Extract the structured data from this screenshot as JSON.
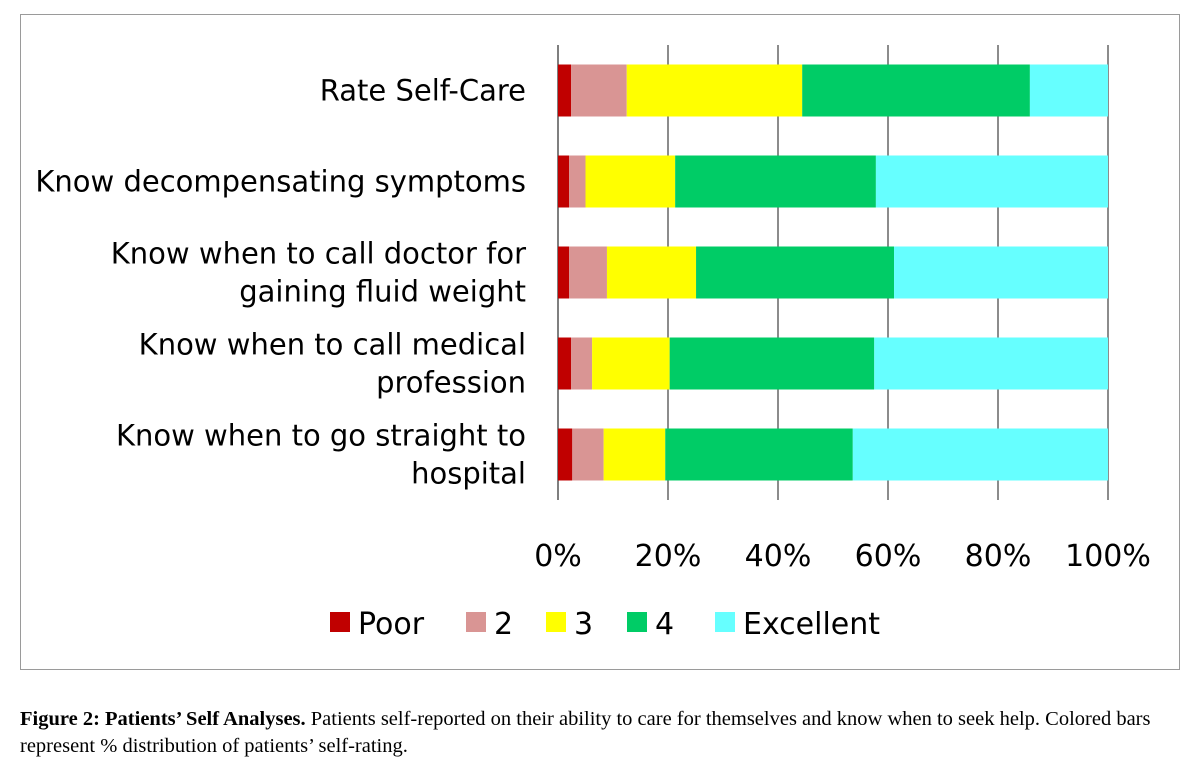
{
  "chart_data": {
    "type": "bar",
    "orientation": "horizontal",
    "stacked": "percent",
    "categories": [
      [
        "Rate Self-Care"
      ],
      [
        "Know decompensating symptoms"
      ],
      [
        "Know when to call doctor for",
        "gaining fluid weight"
      ],
      [
        "Know when to call medical",
        "profession"
      ],
      [
        "Know when to go straight to",
        "hospital"
      ]
    ],
    "series": [
      {
        "name": "Poor",
        "color": "#c00000",
        "values": [
          2.4,
          2.0,
          2.0,
          2.4,
          2.6
        ]
      },
      {
        "name": "2",
        "color": "#d99594",
        "values": [
          10.1,
          3.0,
          6.9,
          3.8,
          5.7
        ]
      },
      {
        "name": "3",
        "color": "#ffff00",
        "values": [
          31.9,
          16.3,
          16.2,
          14.1,
          11.2
        ]
      },
      {
        "name": "4",
        "color": "#00cc66",
        "values": [
          41.4,
          36.5,
          36.0,
          37.2,
          34.1
        ]
      },
      {
        "name": "Excellent",
        "color": "#66ffff",
        "values": [
          14.2,
          42.2,
          38.9,
          42.5,
          46.4
        ]
      }
    ],
    "xticks": [
      "0%",
      "20%",
      "40%",
      "60%",
      "80%",
      "100%"
    ],
    "xlim": [
      0,
      100
    ],
    "grid": true,
    "legend": "bottom"
  },
  "caption": {
    "label": "Figure 2: Patients’ Self Analyses.",
    "text": " Patients self-reported on their ability to care for themselves and know when to seek help. Colored bars represent % distribution of patients’ self-rating."
  }
}
